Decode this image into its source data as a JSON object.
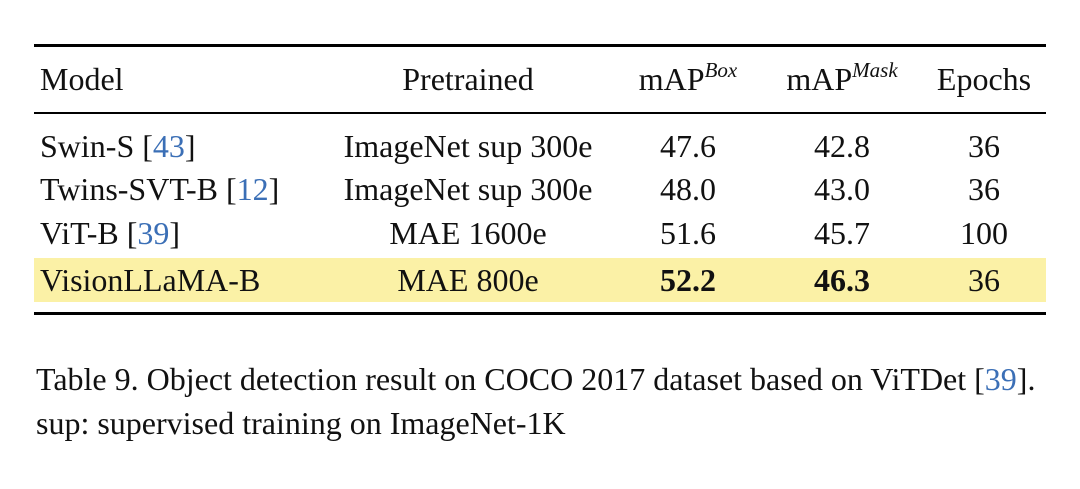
{
  "table": {
    "header": {
      "model": "Model",
      "pretrained": "Pretrained",
      "map_box": "mAP",
      "map_box_sup": "Box",
      "map_mask": "mAP",
      "map_mask_sup": "Mask",
      "epochs": "Epochs"
    },
    "rows": [
      {
        "model": "Swin-S",
        "cite": "43",
        "pretrained": "ImageNet sup 300e",
        "map_box": "47.6",
        "map_mask": "42.8",
        "epochs": "36"
      },
      {
        "model": "Twins-SVT-B",
        "cite": "12",
        "pretrained": "ImageNet sup 300e",
        "map_box": "48.0",
        "map_mask": "43.0",
        "epochs": "36"
      },
      {
        "model": "ViT-B",
        "cite": "39",
        "pretrained": "MAE 1600e",
        "map_box": "51.6",
        "map_mask": "45.7",
        "epochs": "100"
      },
      {
        "model": "VisionLLaMA-B",
        "pretrained": "MAE 800e",
        "map_box": "52.2",
        "map_mask": "46.3",
        "epochs": "36"
      }
    ],
    "highlight_color": "#fbf1a6",
    "cite_color": "#3b6fb6"
  },
  "caption": {
    "text_before": "Table 9.  Object detection result on COCO 2017 dataset based on ViTDet [",
    "cite": "39",
    "text_after": "].  sup: supervised training on ImageNet-1K"
  }
}
